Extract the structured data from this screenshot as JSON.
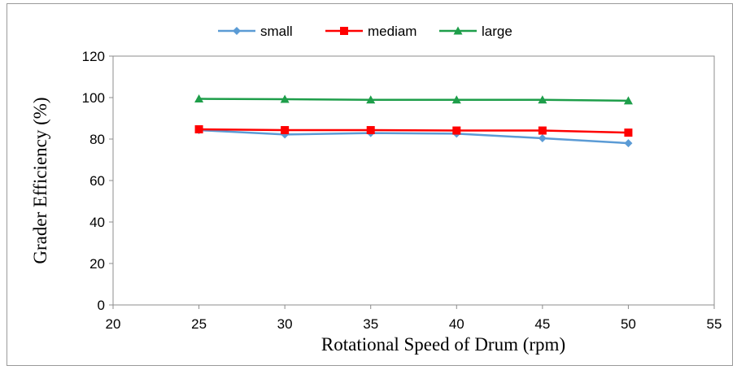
{
  "chart_data": {
    "type": "line",
    "title": "",
    "xlabel": "Rotational Speed of Drum (rpm)",
    "ylabel": "Grader Efficiency (%)",
    "xlim": [
      20,
      55
    ],
    "ylim": [
      0,
      120
    ],
    "xticks": [
      20,
      25,
      30,
      35,
      40,
      45,
      50,
      55
    ],
    "yticks": [
      0,
      20,
      40,
      60,
      80,
      100,
      120
    ],
    "x": [
      25,
      30,
      35,
      40,
      45,
      50
    ],
    "grid": false,
    "legend_position": "top",
    "series": [
      {
        "name": "small",
        "color": "#5b9bd5",
        "marker": "diamond",
        "values": [
          84.3,
          82.2,
          82.9,
          82.6,
          80.4,
          78.0
        ]
      },
      {
        "name": "mediam",
        "color": "#ff0000",
        "marker": "square",
        "values": [
          84.7,
          84.3,
          84.3,
          84.1,
          84.1,
          83.1
        ]
      },
      {
        "name": "large",
        "color": "#1e9e4a",
        "marker": "triangle",
        "values": [
          99.4,
          99.2,
          98.9,
          98.9,
          98.9,
          98.5
        ]
      }
    ]
  }
}
